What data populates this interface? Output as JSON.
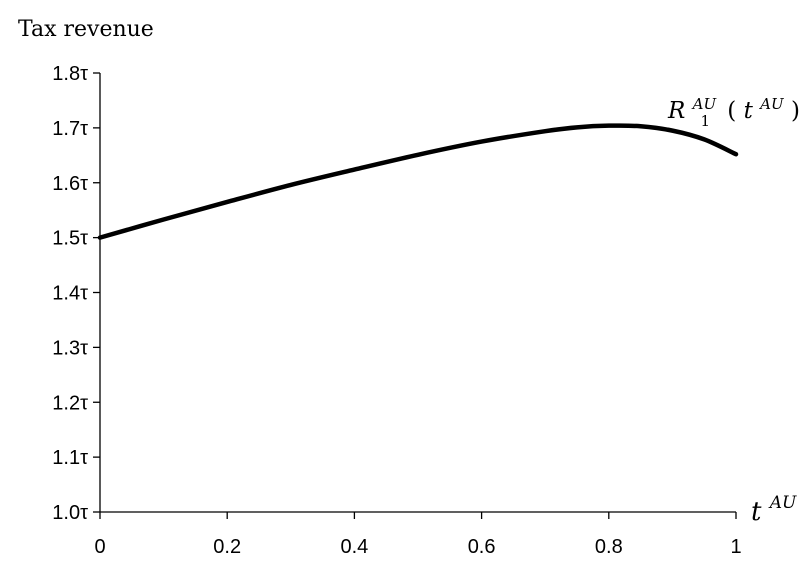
{
  "chart_data": {
    "type": "line",
    "title": "",
    "ylabel": "Tax revenue",
    "xlabel": {
      "base": "t",
      "sup": "AU"
    },
    "xlim": [
      0,
      1
    ],
    "ylim": [
      1.0,
      1.8
    ],
    "x_ticks": [
      "0",
      "0.2",
      "0.4",
      "0.6",
      "0.8",
      "1"
    ],
    "x_tick_values": [
      0,
      0.2,
      0.4,
      0.6,
      0.8,
      1
    ],
    "y_ticks": [
      "1.0τ",
      "1.1τ",
      "1.2τ",
      "1.3τ",
      "1.4τ",
      "1.5τ",
      "1.6τ",
      "1.7τ",
      "1.8τ"
    ],
    "y_tick_values": [
      1.0,
      1.1,
      1.2,
      1.3,
      1.4,
      1.5,
      1.6,
      1.7,
      1.8
    ],
    "grid": false,
    "legend": "none",
    "series": [
      {
        "label": {
          "base": "R",
          "sub": "1",
          "sup": "AU",
          "open": "(",
          "arg_base": "t",
          "arg_sup": "AU",
          "close": ")"
        },
        "color": "#000000",
        "x": [
          0,
          0.1,
          0.2,
          0.3,
          0.4,
          0.5,
          0.6,
          0.7,
          0.75,
          0.8,
          0.85,
          0.9,
          0.95,
          1.0
        ],
        "y": [
          1.5,
          1.533,
          1.565,
          1.596,
          1.624,
          1.651,
          1.675,
          1.694,
          1.701,
          1.704,
          1.703,
          1.695,
          1.679,
          1.652
        ]
      }
    ]
  }
}
